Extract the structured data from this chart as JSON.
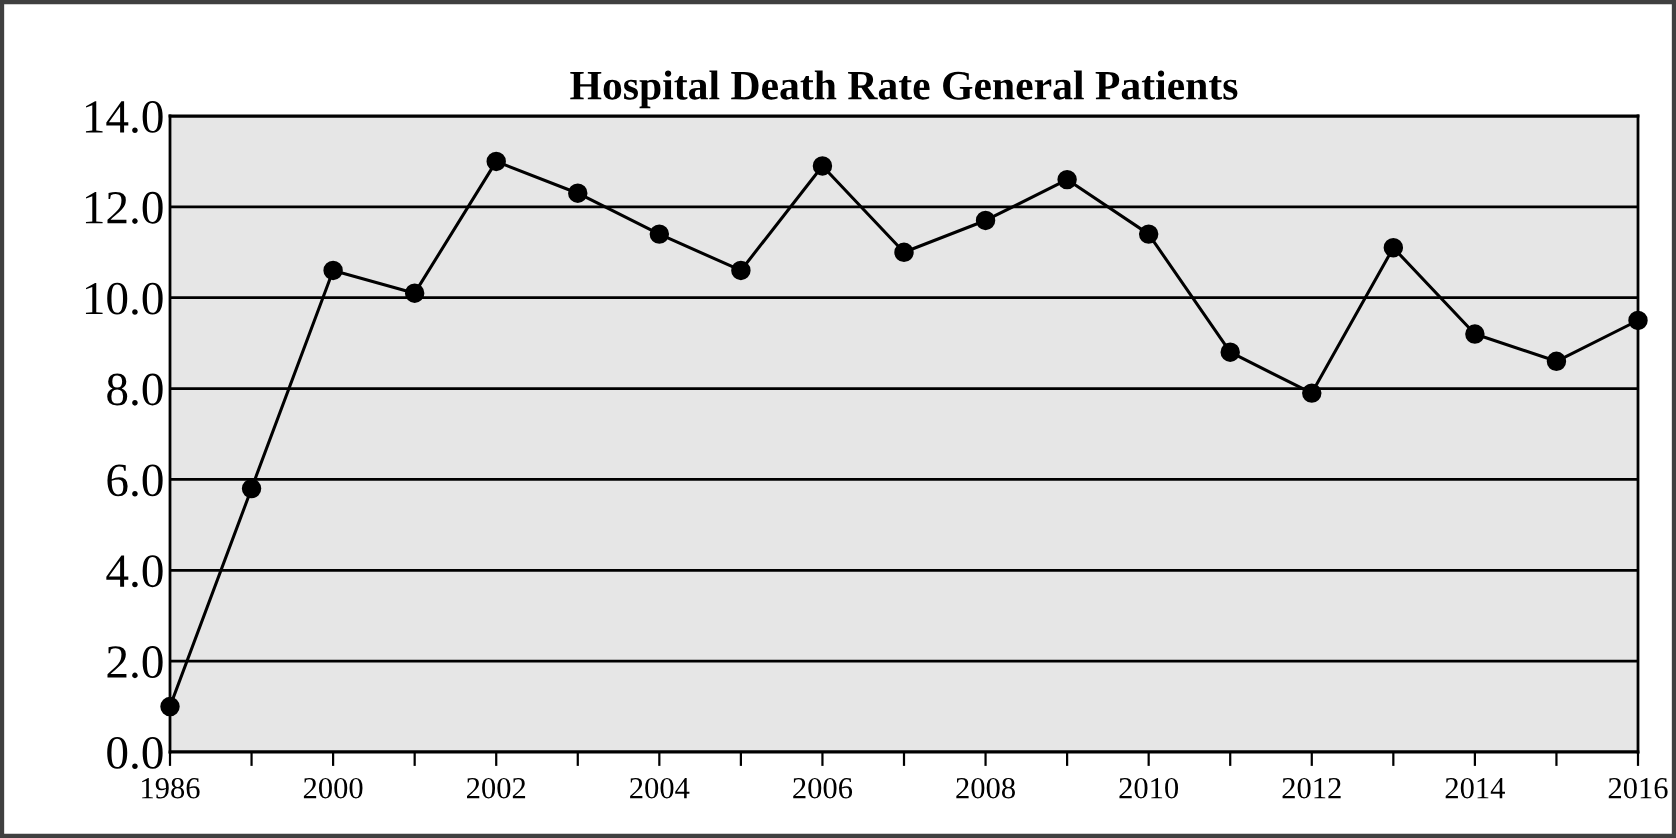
{
  "chart_data": {
    "type": "line",
    "title": "Hospital Death Rate General Patients",
    "categories": [
      "1986",
      null,
      "2000",
      null,
      "2002",
      null,
      "2004",
      null,
      "2006",
      null,
      "2008",
      null,
      "2010",
      null,
      "2012",
      null,
      "2014",
      null,
      "2016"
    ],
    "series": [
      {
        "color": "#000000",
        "values": [
          1.0,
          5.8,
          10.6,
          10.1,
          13.0,
          12.3,
          11.4,
          10.6,
          12.9,
          11.0,
          11.7,
          12.6,
          11.4,
          8.8,
          7.9,
          11.1,
          9.2,
          8.6,
          9.5
        ]
      }
    ],
    "ylim": [
      0,
      14
    ],
    "yticks": [
      {
        "value": 0,
        "label": "0.0"
      },
      {
        "value": 2,
        "label": "2.0"
      },
      {
        "value": 4,
        "label": "4.0"
      },
      {
        "value": 6,
        "label": "6.0"
      },
      {
        "value": 8,
        "label": "8.0"
      },
      {
        "value": 10,
        "label": "10.0"
      },
      {
        "value": 12,
        "label": "12.0"
      },
      {
        "value": 14,
        "label": "14.0"
      }
    ],
    "grid": "y",
    "marker": "circle",
    "line_style": "solid"
  }
}
